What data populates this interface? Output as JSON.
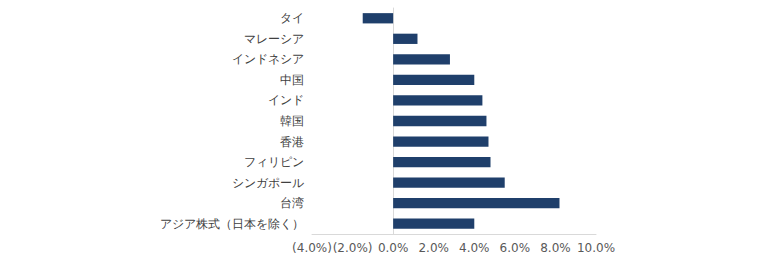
{
  "chart_data": {
    "type": "bar",
    "orientation": "horizontal",
    "categories": [
      "タイ",
      "マレーシア",
      "インドネシア",
      "中国",
      "インド",
      "韓国",
      "香港",
      "フィリピン",
      "シンガポール",
      "台湾",
      "アジア株式（日本を除く）"
    ],
    "values": [
      -1.5,
      1.2,
      2.8,
      4.0,
      4.4,
      4.6,
      4.7,
      4.8,
      5.5,
      8.2,
      4.0
    ],
    "color": "#1F3F6B",
    "xlim": [
      -4,
      10
    ],
    "xticks": [
      {
        "value": -4,
        "label": "(4.0%)"
      },
      {
        "value": -2,
        "label": "(2.0%)"
      },
      {
        "value": 0,
        "label": "0.0%"
      },
      {
        "value": 2,
        "label": "2.0%"
      },
      {
        "value": 4,
        "label": "4.0%"
      },
      {
        "value": 6,
        "label": "6.0%"
      },
      {
        "value": 8,
        "label": "8.0%"
      },
      {
        "value": 10,
        "label": "10.0%"
      }
    ],
    "grid": false
  }
}
